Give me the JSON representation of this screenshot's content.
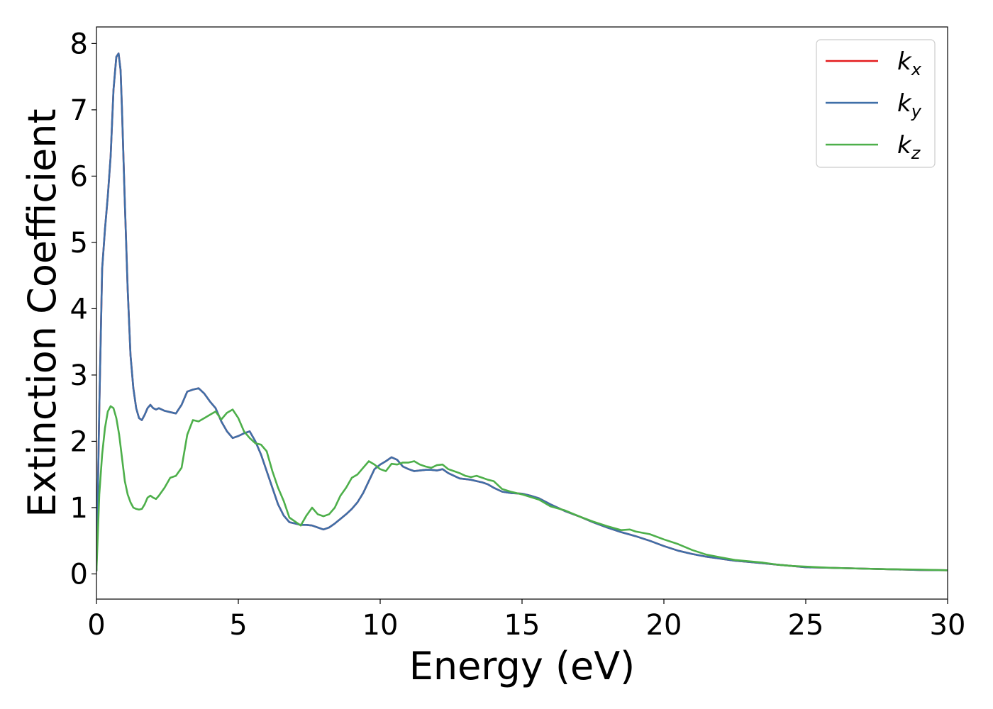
{
  "chart_data": {
    "type": "line",
    "title": "",
    "xlabel": "Energy (eV)",
    "ylabel": "Extinction Coefficient",
    "xlim": [
      0,
      30
    ],
    "ylim": [
      -0.38,
      8.25
    ],
    "xticks": [
      0,
      5,
      10,
      15,
      20,
      25,
      30
    ],
    "yticks": [
      0,
      1,
      2,
      3,
      4,
      5,
      6,
      7,
      8
    ],
    "grid": false,
    "legend_position": "top-right",
    "series": [
      {
        "name": "k_x",
        "label_base": "k",
        "label_sub": "x",
        "color": "#e41a1c",
        "x": [
          0,
          0.1,
          0.2,
          0.3,
          0.4,
          0.5,
          0.6,
          0.7,
          0.78,
          0.85,
          0.9,
          1.0,
          1.1,
          1.2,
          1.3,
          1.4,
          1.5,
          1.6,
          1.7,
          1.8,
          1.9,
          2.0,
          2.1,
          2.2,
          2.4,
          2.6,
          2.8,
          3.0,
          3.2,
          3.4,
          3.6,
          3.8,
          4.0,
          4.2,
          4.4,
          4.6,
          4.8,
          5.0,
          5.2,
          5.4,
          5.6,
          5.8,
          6.0,
          6.2,
          6.4,
          6.6,
          6.8,
          7.0,
          7.2,
          7.4,
          7.6,
          7.8,
          8.0,
          8.2,
          8.4,
          8.6,
          8.8,
          9.0,
          9.2,
          9.4,
          9.6,
          9.8,
          10.0,
          10.2,
          10.4,
          10.6,
          10.8,
          11.0,
          11.2,
          11.4,
          11.6,
          11.8,
          12.0,
          12.2,
          12.4,
          12.6,
          12.8,
          13.0,
          13.2,
          13.4,
          13.6,
          13.8,
          14.0,
          14.3,
          14.6,
          15.0,
          15.3,
          15.6,
          16.0,
          16.5,
          17.0,
          17.5,
          18.0,
          18.5,
          19.0,
          19.5,
          20.0,
          20.5,
          21.0,
          21.5,
          22.0,
          22.5,
          23.0,
          23.5,
          24.0,
          24.5,
          25.0,
          26.0,
          27.0,
          28.0,
          29.0,
          30.0
        ],
        "y": [
          0.05,
          2.5,
          4.6,
          5.2,
          5.7,
          6.3,
          7.3,
          7.8,
          7.85,
          7.6,
          7.0,
          5.6,
          4.3,
          3.3,
          2.8,
          2.5,
          2.35,
          2.32,
          2.4,
          2.5,
          2.55,
          2.5,
          2.48,
          2.5,
          2.46,
          2.44,
          2.42,
          2.55,
          2.75,
          2.78,
          2.8,
          2.72,
          2.6,
          2.5,
          2.3,
          2.15,
          2.05,
          2.08,
          2.12,
          2.15,
          2.0,
          1.8,
          1.55,
          1.3,
          1.05,
          0.88,
          0.78,
          0.76,
          0.74,
          0.74,
          0.73,
          0.7,
          0.67,
          0.7,
          0.76,
          0.83,
          0.9,
          0.98,
          1.08,
          1.22,
          1.4,
          1.58,
          1.65,
          1.7,
          1.76,
          1.72,
          1.62,
          1.58,
          1.55,
          1.56,
          1.57,
          1.57,
          1.56,
          1.58,
          1.52,
          1.48,
          1.44,
          1.43,
          1.42,
          1.4,
          1.38,
          1.35,
          1.3,
          1.24,
          1.22,
          1.21,
          1.18,
          1.14,
          1.05,
          0.95,
          0.87,
          0.78,
          0.7,
          0.63,
          0.57,
          0.5,
          0.42,
          0.35,
          0.3,
          0.26,
          0.23,
          0.2,
          0.18,
          0.16,
          0.14,
          0.12,
          0.1,
          0.09,
          0.08,
          0.07,
          0.06,
          0.055
        ]
      },
      {
        "name": "k_y",
        "label_base": "k",
        "label_sub": "y",
        "color": "#3f6fa8",
        "x": [
          0,
          0.1,
          0.2,
          0.3,
          0.4,
          0.5,
          0.6,
          0.7,
          0.78,
          0.85,
          0.9,
          1.0,
          1.1,
          1.2,
          1.3,
          1.4,
          1.5,
          1.6,
          1.7,
          1.8,
          1.9,
          2.0,
          2.1,
          2.2,
          2.4,
          2.6,
          2.8,
          3.0,
          3.2,
          3.4,
          3.6,
          3.8,
          4.0,
          4.2,
          4.4,
          4.6,
          4.8,
          5.0,
          5.2,
          5.4,
          5.6,
          5.8,
          6.0,
          6.2,
          6.4,
          6.6,
          6.8,
          7.0,
          7.2,
          7.4,
          7.6,
          7.8,
          8.0,
          8.2,
          8.4,
          8.6,
          8.8,
          9.0,
          9.2,
          9.4,
          9.6,
          9.8,
          10.0,
          10.2,
          10.4,
          10.6,
          10.8,
          11.0,
          11.2,
          11.4,
          11.6,
          11.8,
          12.0,
          12.2,
          12.4,
          12.6,
          12.8,
          13.0,
          13.2,
          13.4,
          13.6,
          13.8,
          14.0,
          14.3,
          14.6,
          15.0,
          15.3,
          15.6,
          16.0,
          16.5,
          17.0,
          17.5,
          18.0,
          18.5,
          19.0,
          19.5,
          20.0,
          20.5,
          21.0,
          21.5,
          22.0,
          22.5,
          23.0,
          23.5,
          24.0,
          24.5,
          25.0,
          26.0,
          27.0,
          28.0,
          29.0,
          30.0
        ],
        "y": [
          0.05,
          2.5,
          4.6,
          5.2,
          5.7,
          6.3,
          7.3,
          7.8,
          7.85,
          7.6,
          7.0,
          5.6,
          4.3,
          3.3,
          2.8,
          2.5,
          2.35,
          2.32,
          2.4,
          2.5,
          2.55,
          2.5,
          2.48,
          2.5,
          2.46,
          2.44,
          2.42,
          2.55,
          2.75,
          2.78,
          2.8,
          2.72,
          2.6,
          2.5,
          2.3,
          2.15,
          2.05,
          2.08,
          2.12,
          2.15,
          2.0,
          1.8,
          1.55,
          1.3,
          1.05,
          0.88,
          0.78,
          0.76,
          0.74,
          0.74,
          0.73,
          0.7,
          0.67,
          0.7,
          0.76,
          0.83,
          0.9,
          0.98,
          1.08,
          1.22,
          1.4,
          1.58,
          1.65,
          1.7,
          1.76,
          1.72,
          1.62,
          1.58,
          1.55,
          1.56,
          1.57,
          1.57,
          1.56,
          1.58,
          1.52,
          1.48,
          1.44,
          1.43,
          1.42,
          1.4,
          1.38,
          1.35,
          1.3,
          1.24,
          1.22,
          1.21,
          1.18,
          1.14,
          1.05,
          0.95,
          0.87,
          0.78,
          0.7,
          0.63,
          0.57,
          0.5,
          0.42,
          0.35,
          0.3,
          0.26,
          0.23,
          0.2,
          0.18,
          0.16,
          0.14,
          0.12,
          0.1,
          0.09,
          0.08,
          0.07,
          0.06,
          0.055
        ]
      },
      {
        "name": "k_z",
        "label_base": "k",
        "label_sub": "z",
        "color": "#4daf4a",
        "x": [
          0,
          0.1,
          0.2,
          0.3,
          0.4,
          0.5,
          0.6,
          0.7,
          0.8,
          0.9,
          1.0,
          1.1,
          1.2,
          1.3,
          1.4,
          1.5,
          1.6,
          1.7,
          1.8,
          1.9,
          2.0,
          2.1,
          2.2,
          2.4,
          2.6,
          2.8,
          3.0,
          3.2,
          3.4,
          3.6,
          3.8,
          4.0,
          4.2,
          4.4,
          4.6,
          4.8,
          5.0,
          5.2,
          5.4,
          5.6,
          5.8,
          6.0,
          6.2,
          6.4,
          6.6,
          6.8,
          7.0,
          7.2,
          7.4,
          7.6,
          7.8,
          8.0,
          8.2,
          8.4,
          8.6,
          8.8,
          9.0,
          9.2,
          9.4,
          9.6,
          9.8,
          10.0,
          10.2,
          10.4,
          10.6,
          10.8,
          11.0,
          11.2,
          11.4,
          11.6,
          11.8,
          12.0,
          12.2,
          12.4,
          12.6,
          12.8,
          13.0,
          13.2,
          13.4,
          13.6,
          13.8,
          14.0,
          14.3,
          14.6,
          15.0,
          15.3,
          15.6,
          16.0,
          16.5,
          17.0,
          17.5,
          18.0,
          18.5,
          18.8,
          19.0,
          19.5,
          20.0,
          20.5,
          21.0,
          21.5,
          22.0,
          22.5,
          23.0,
          23.5,
          24.0,
          24.5,
          25.0,
          26.0,
          27.0,
          28.0,
          29.0,
          30.0
        ],
        "y": [
          0.05,
          1.2,
          1.8,
          2.2,
          2.45,
          2.53,
          2.5,
          2.35,
          2.1,
          1.75,
          1.4,
          1.2,
          1.08,
          1.0,
          0.98,
          0.97,
          0.98,
          1.05,
          1.15,
          1.18,
          1.15,
          1.13,
          1.18,
          1.3,
          1.45,
          1.48,
          1.6,
          2.1,
          2.32,
          2.3,
          2.35,
          2.4,
          2.45,
          2.33,
          2.43,
          2.48,
          2.35,
          2.15,
          2.05,
          1.97,
          1.95,
          1.85,
          1.55,
          1.3,
          1.1,
          0.85,
          0.79,
          0.73,
          0.88,
          1.0,
          0.9,
          0.87,
          0.9,
          1.0,
          1.18,
          1.3,
          1.45,
          1.5,
          1.6,
          1.7,
          1.65,
          1.58,
          1.55,
          1.66,
          1.65,
          1.68,
          1.68,
          1.7,
          1.65,
          1.62,
          1.6,
          1.64,
          1.65,
          1.58,
          1.55,
          1.52,
          1.48,
          1.46,
          1.48,
          1.45,
          1.42,
          1.4,
          1.28,
          1.24,
          1.2,
          1.16,
          1.12,
          1.02,
          0.96,
          0.87,
          0.79,
          0.72,
          0.66,
          0.67,
          0.64,
          0.6,
          0.52,
          0.45,
          0.36,
          0.29,
          0.25,
          0.21,
          0.19,
          0.17,
          0.14,
          0.12,
          0.11,
          0.09,
          0.08,
          0.07,
          0.065,
          0.055
        ]
      }
    ]
  }
}
